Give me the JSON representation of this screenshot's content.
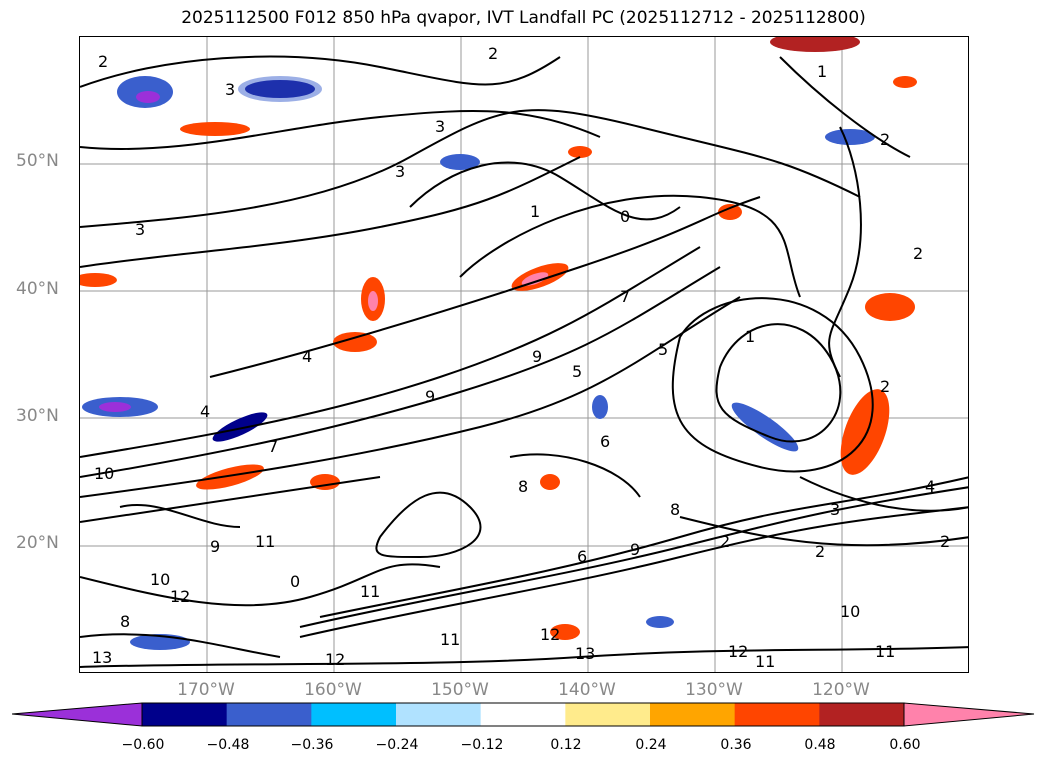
{
  "title": "2025112500 F012 850 hPa qvapor, IVT Landfall PC (2025112712 - 2025112800)",
  "lat_labels": [
    "50°N",
    "40°N",
    "30°N",
    "20°N"
  ],
  "lon_labels": [
    "170°W",
    "160°W",
    "150°W",
    "140°W",
    "130°W",
    "120°W"
  ],
  "colorbar": {
    "ticks": [
      "−0.60",
      "−0.48",
      "−0.36",
      "−0.24",
      "−0.12",
      "0.12",
      "0.24",
      "0.36",
      "0.48",
      "0.60"
    ],
    "colors": [
      "#9b30d9",
      "#00008b",
      "#3a5fcd",
      "#00bfff",
      "#b0e2ff",
      "#ffffff",
      "#ffeb8c",
      "#ffa500",
      "#ff4500",
      "#b22222",
      "#ff82ab"
    ]
  },
  "contour_labels": [
    "2",
    "3",
    "3",
    "2",
    "1",
    "3",
    "2",
    "3",
    "1",
    "0",
    "2",
    "2",
    "1",
    "2",
    "9",
    "8",
    "5",
    "7",
    "6",
    "4",
    "4",
    "10",
    "9",
    "11",
    "10",
    "8",
    "12",
    "13",
    "12",
    "11",
    "11",
    "12",
    "13",
    "12",
    "11",
    "11",
    "9",
    "8",
    "7",
    "6",
    "3",
    "2",
    "4",
    "10",
    "0",
    "9",
    "5",
    "2"
  ]
}
